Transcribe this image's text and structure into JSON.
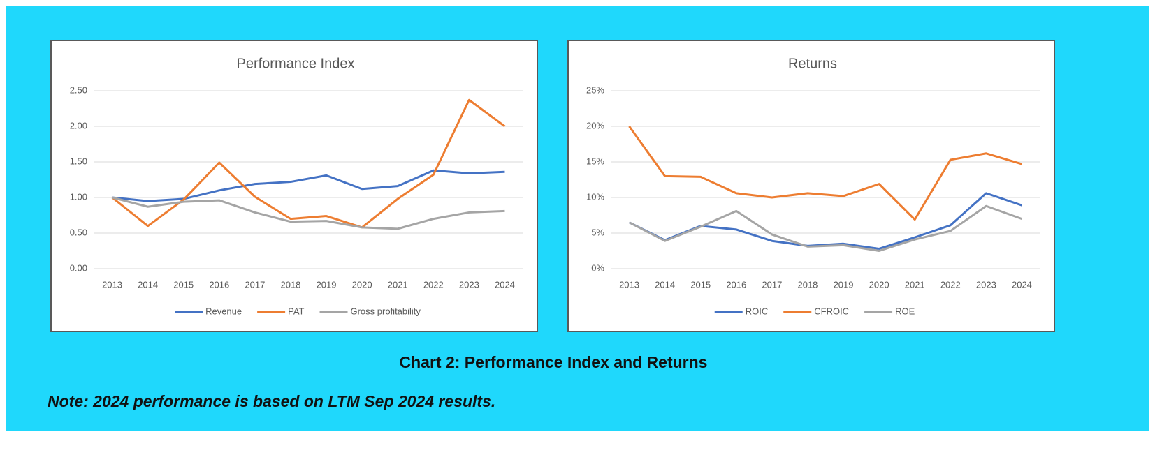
{
  "chart_data": [
    {
      "type": "line",
      "title": "Performance Index",
      "categories": [
        "2013",
        "2014",
        "2015",
        "2016",
        "2017",
        "2018",
        "2019",
        "2020",
        "2021",
        "2022",
        "2023",
        "2024"
      ],
      "series": [
        {
          "name": "Revenue",
          "color": "#4472c4",
          "values": [
            1.0,
            0.95,
            0.98,
            1.1,
            1.19,
            1.22,
            1.31,
            1.12,
            1.16,
            1.38,
            1.34,
            1.36
          ]
        },
        {
          "name": "PAT",
          "color": "#ed7d31",
          "values": [
            1.0,
            0.6,
            0.97,
            1.49,
            1.01,
            0.7,
            0.74,
            0.58,
            0.98,
            1.32,
            2.37,
            2.0
          ]
        },
        {
          "name": "Gross profitability",
          "color": "#a5a5a5",
          "values": [
            1.0,
            0.87,
            0.94,
            0.96,
            0.79,
            0.66,
            0.67,
            0.58,
            0.56,
            0.7,
            0.79,
            0.81
          ]
        }
      ],
      "ylim": [
        0,
        2.5
      ],
      "yticks": [
        {
          "value": 0,
          "label": "0.00"
        },
        {
          "value": 0.5,
          "label": "0.50"
        },
        {
          "value": 1,
          "label": "1.00"
        },
        {
          "value": 1.5,
          "label": "1.50"
        },
        {
          "value": 2,
          "label": "2.00"
        },
        {
          "value": 2.5,
          "label": "2.50"
        }
      ],
      "grid": true,
      "legend": "bottom"
    },
    {
      "type": "line",
      "title": "Returns",
      "categories": [
        "2013",
        "2014",
        "2015",
        "2016",
        "2017",
        "2018",
        "2019",
        "2020",
        "2021",
        "2022",
        "2023",
        "2024"
      ],
      "series": [
        {
          "name": "ROIC",
          "color": "#4472c4",
          "values": [
            6.5,
            4.0,
            6.0,
            5.5,
            3.9,
            3.2,
            3.5,
            2.8,
            4.4,
            6.1,
            10.6,
            8.9
          ]
        },
        {
          "name": "CFROIC",
          "color": "#ed7d31",
          "values": [
            20.0,
            13.0,
            12.9,
            10.6,
            10.0,
            10.6,
            10.2,
            11.9,
            6.9,
            15.3,
            16.2,
            14.7
          ]
        },
        {
          "name": "ROE",
          "color": "#a5a5a5",
          "values": [
            6.5,
            3.9,
            5.9,
            8.1,
            4.8,
            3.1,
            3.3,
            2.5,
            4.1,
            5.3,
            8.8,
            7.0
          ]
        }
      ],
      "ylim": [
        0,
        25
      ],
      "yticks": [
        {
          "value": 0,
          "label": "0%"
        },
        {
          "value": 5,
          "label": "5%"
        },
        {
          "value": 10,
          "label": "10%"
        },
        {
          "value": 15,
          "label": "15%"
        },
        {
          "value": 20,
          "label": "20%"
        },
        {
          "value": 25,
          "label": "25%"
        }
      ],
      "grid": true,
      "legend": "bottom"
    }
  ],
  "caption": "Chart 2: Performance Index and Returns",
  "note": "Note: 2024 performance is based on LTM Sep 2024 results."
}
